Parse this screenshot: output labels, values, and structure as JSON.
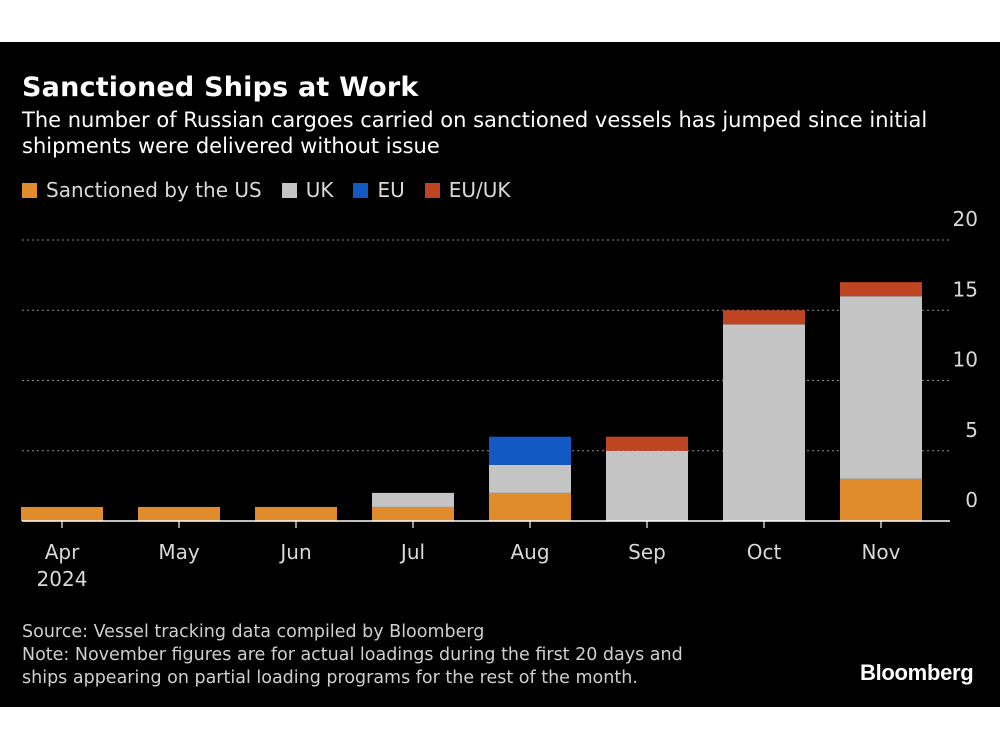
{
  "header": {
    "title": "Sanctioned Ships at Work",
    "subtitle": "The number of Russian cargoes carried on sanctioned vessels has jumped since initial shipments were delivered without issue"
  },
  "chart_data": {
    "type": "bar",
    "stacked": true,
    "title": "Sanctioned Ships at Work",
    "subtitle": "The number of Russian cargoes carried on sanctioned vessels has jumped since initial shipments were delivered without issue",
    "categories": [
      "Apr",
      "May",
      "Jun",
      "Jul",
      "Aug",
      "Sep",
      "Oct",
      "Nov"
    ],
    "category_sublabels": [
      "2024",
      "",
      "",
      "",
      "",
      "",
      "",
      ""
    ],
    "series": [
      {
        "name": "Sanctioned by the US",
        "color": "#e08b2c",
        "values": [
          1,
          1,
          1,
          1,
          2,
          0,
          0,
          3
        ]
      },
      {
        "name": "UK",
        "color": "#c4c4c4",
        "values": [
          0,
          0,
          0,
          1,
          2,
          5,
          14,
          13
        ]
      },
      {
        "name": "EU",
        "color": "#1259c3",
        "values": [
          0,
          0,
          0,
          0,
          2,
          0,
          0,
          0
        ]
      },
      {
        "name": "EU/UK",
        "color": "#bf4422",
        "values": [
          0,
          0,
          0,
          0,
          0,
          1,
          1,
          1
        ]
      }
    ],
    "ylim": [
      0,
      20
    ],
    "yticks": [
      0,
      5,
      10,
      15,
      20
    ],
    "grid": true,
    "legend": "top-left",
    "y_axis_side": "right"
  },
  "footer": {
    "source": "Source: Vessel tracking data compiled by Bloomberg",
    "note_line1": "Note: November figures are for actual loadings during the first 20 days and",
    "note_line2": "ships appearing on partial loading programs for the rest of the month."
  },
  "brand": "Bloomberg"
}
